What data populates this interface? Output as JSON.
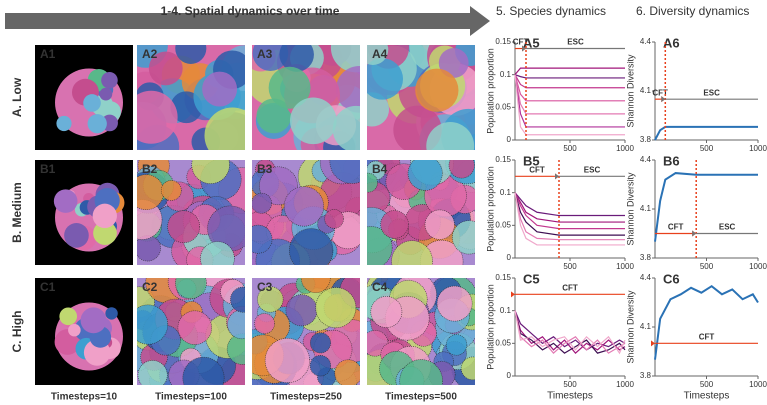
{
  "header": {
    "spatial_title": "1-4. Spatial dynamics over time",
    "species_title": "5. Species dynamics",
    "diversity_title": "6. Diversity dynamics"
  },
  "rows": [
    {
      "label": "A. Low",
      "panels": [
        "A1",
        "A2",
        "A3",
        "A4"
      ]
    },
    {
      "label": "B. Medium",
      "panels": [
        "B1",
        "B2",
        "B3",
        "B4"
      ]
    },
    {
      "label": "C. High",
      "panels": [
        "C1",
        "C2",
        "C3",
        "C4"
      ]
    }
  ],
  "column_labels": [
    "Timesteps=10",
    "Timesteps=100",
    "Timesteps=250",
    "Timesteps=500"
  ],
  "species_charts": [
    {
      "label": "A5",
      "y_label": "Population proportion",
      "ylim": [
        0,
        0.15
      ],
      "yticks": [
        0,
        0.05,
        0.1,
        0.15
      ],
      "xlim": [
        0,
        1000
      ],
      "xticks": [
        500,
        1000
      ],
      "x": [
        0,
        50,
        100,
        200,
        400,
        700,
        1000
      ],
      "series": [
        {
          "color": "#a0157a",
          "values": [
            0.1,
            0.11,
            0.11,
            0.11,
            0.11,
            0.11,
            0.11
          ]
        },
        {
          "color": "#6a1b7a",
          "values": [
            0.1,
            0.097,
            0.095,
            0.095,
            0.095,
            0.095,
            0.095
          ]
        },
        {
          "color": "#c2388f",
          "values": [
            0.1,
            0.085,
            0.08,
            0.08,
            0.08,
            0.08,
            0.08
          ]
        },
        {
          "color": "#d9559f",
          "values": [
            0.1,
            0.07,
            0.06,
            0.06,
            0.06,
            0.06,
            0.06
          ]
        },
        {
          "color": "#e37ab3",
          "values": [
            0.1,
            0.055,
            0.04,
            0.04,
            0.04,
            0.04,
            0.04
          ]
        },
        {
          "color": "#b0309a",
          "values": [
            0.1,
            0.04,
            0.02,
            0.02,
            0.02,
            0.02,
            0.02
          ]
        },
        {
          "color": "#f0a8cb",
          "values": [
            0.1,
            0.02,
            0.008,
            0.008,
            0.008,
            0.008,
            0.008
          ]
        }
      ],
      "annotations": [
        {
          "text": "CFT",
          "from": 0,
          "to": 100,
          "y": 0.14
        },
        {
          "text": "ESC",
          "from": 1000,
          "to": 100,
          "y": 0.14
        }
      ]
    },
    {
      "label": "B5",
      "y_label": "Population proportion",
      "ylim": [
        0,
        0.15
      ],
      "yticks": [
        0,
        0.05,
        0.1,
        0.15
      ],
      "xlim": [
        0,
        1000
      ],
      "xticks": [
        500,
        1000
      ],
      "x": [
        0,
        50,
        100,
        200,
        400,
        700,
        1000
      ],
      "series": [
        {
          "color": "#6a1b7a",
          "values": [
            0.1,
            0.09,
            0.08,
            0.07,
            0.065,
            0.065,
            0.065
          ]
        },
        {
          "color": "#a0157a",
          "values": [
            0.1,
            0.085,
            0.07,
            0.06,
            0.055,
            0.055,
            0.055
          ]
        },
        {
          "color": "#c2388f",
          "values": [
            0.1,
            0.08,
            0.065,
            0.05,
            0.045,
            0.045,
            0.045
          ]
        },
        {
          "color": "#3d0e52",
          "values": [
            0.1,
            0.07,
            0.055,
            0.04,
            0.035,
            0.035,
            0.035
          ]
        },
        {
          "color": "#e37ab3",
          "values": [
            0.1,
            0.06,
            0.04,
            0.03,
            0.028,
            0.028,
            0.028
          ]
        },
        {
          "color": "#f0a8cb",
          "values": [
            0.1,
            0.05,
            0.03,
            0.02,
            0.02,
            0.02,
            0.02
          ]
        }
      ],
      "annotations": [
        {
          "text": "CFT",
          "from": 0,
          "to": 400,
          "y": 0.125
        },
        {
          "text": "ESC",
          "from": 1000,
          "to": 400,
          "y": 0.125
        }
      ]
    },
    {
      "label": "C5",
      "y_label": "Population proportion",
      "x_label": "Timesteps",
      "ylim": [
        0,
        0.15
      ],
      "yticks": [
        0,
        0.05,
        0.1,
        0.15
      ],
      "xlim": [
        0,
        1000
      ],
      "xticks": [
        500,
        1000
      ],
      "x": [
        0,
        50,
        150,
        250,
        350,
        450,
        550,
        650,
        750,
        850,
        950,
        1000
      ],
      "series": [
        {
          "color": "#6a1b7a",
          "values": [
            0.1,
            0.08,
            0.065,
            0.05,
            0.06,
            0.045,
            0.055,
            0.04,
            0.05,
            0.045,
            0.055,
            0.05
          ]
        },
        {
          "color": "#a0157a",
          "values": [
            0.1,
            0.07,
            0.05,
            0.06,
            0.04,
            0.055,
            0.035,
            0.05,
            0.04,
            0.055,
            0.04,
            0.045
          ]
        },
        {
          "color": "#3d0e52",
          "values": [
            0.1,
            0.065,
            0.055,
            0.04,
            0.05,
            0.035,
            0.045,
            0.055,
            0.035,
            0.04,
            0.05,
            0.04
          ]
        },
        {
          "color": "#e37ab3",
          "values": [
            0.1,
            0.06,
            0.045,
            0.055,
            0.035,
            0.05,
            0.06,
            0.04,
            0.055,
            0.035,
            0.045,
            0.05
          ]
        },
        {
          "color": "#f0a8cb",
          "values": [
            0.1,
            0.055,
            0.06,
            0.045,
            0.055,
            0.06,
            0.04,
            0.06,
            0.045,
            0.06,
            0.035,
            0.055
          ]
        }
      ],
      "annotations": [
        {
          "text": "CFT",
          "from": 1000,
          "to": 0,
          "y": 0.125
        }
      ]
    }
  ],
  "diversity_charts": [
    {
      "label": "A6",
      "y_label": "Shannon Diversity",
      "ylim": [
        3.8,
        4.4
      ],
      "yticks": [
        3.8,
        4.1,
        4.4
      ],
      "xlim": [
        0,
        1000
      ],
      "xticks": [
        500,
        1000
      ],
      "x": [
        0,
        50,
        100,
        200,
        500,
        1000
      ],
      "series": [
        {
          "color": "#2a72b5",
          "values": [
            3.8,
            3.86,
            3.88,
            3.88,
            3.88,
            3.88
          ]
        }
      ],
      "annotations": [
        {
          "text": "CFT",
          "from": 0,
          "to": 100,
          "y": 4.05
        },
        {
          "text": "ESC",
          "from": 1000,
          "to": 100,
          "y": 4.05
        }
      ]
    },
    {
      "label": "B6",
      "y_label": "Shannon Diversity",
      "ylim": [
        3.8,
        4.4
      ],
      "yticks": [
        3.8,
        4.1,
        4.4
      ],
      "xlim": [
        0,
        1000
      ],
      "xticks": [
        500,
        1000
      ],
      "x": [
        0,
        50,
        100,
        200,
        400,
        700,
        1000
      ],
      "series": [
        {
          "color": "#2a72b5",
          "values": [
            3.9,
            4.15,
            4.28,
            4.32,
            4.31,
            4.31,
            4.31
          ]
        }
      ],
      "annotations": [
        {
          "text": "CFT",
          "from": 0,
          "to": 400,
          "y": 3.95
        },
        {
          "text": "ESC",
          "from": 1000,
          "to": 400,
          "y": 3.95
        }
      ]
    },
    {
      "label": "C6",
      "y_label": "Shannon Diversity",
      "x_label": "Timesteps",
      "ylim": [
        3.8,
        4.4
      ],
      "yticks": [
        3.8,
        4.1,
        4.4
      ],
      "xlim": [
        0,
        1000
      ],
      "xticks": [
        500,
        1000
      ],
      "x": [
        0,
        50,
        150,
        250,
        350,
        450,
        550,
        650,
        750,
        850,
        950,
        1000
      ],
      "series": [
        {
          "color": "#2a72b5",
          "values": [
            3.9,
            4.15,
            4.27,
            4.3,
            4.34,
            4.31,
            4.35,
            4.3,
            4.33,
            4.27,
            4.3,
            4.25
          ]
        }
      ],
      "annotations": [
        {
          "text": "CFT",
          "from": 1000,
          "to": 0,
          "y": 4.0
        }
      ]
    }
  ]
}
